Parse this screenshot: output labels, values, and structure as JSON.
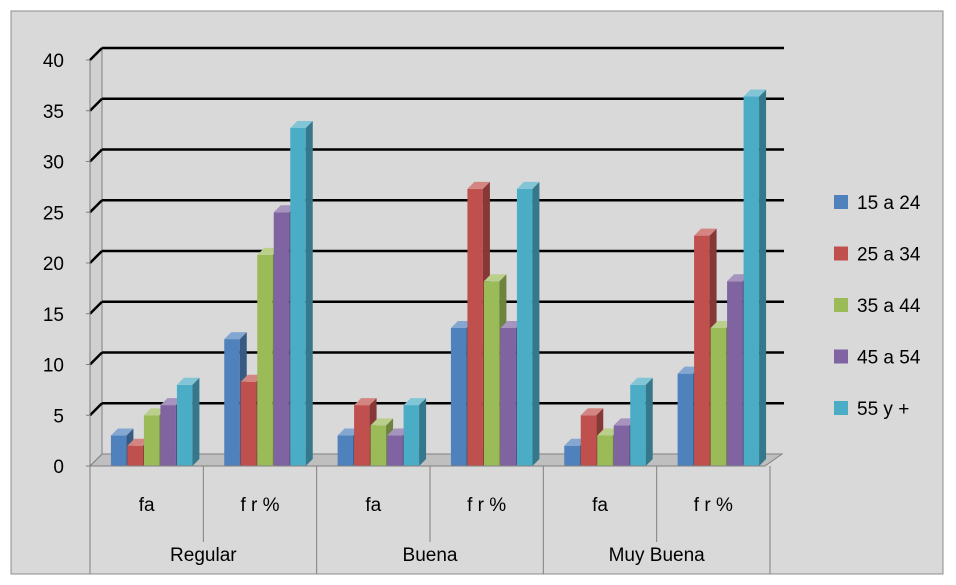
{
  "chart_data": {
    "type": "bar",
    "title": "",
    "xlabel": "",
    "ylabel": "",
    "ylim": [
      0,
      40
    ],
    "yticks": [
      "0",
      "5",
      "10",
      "15",
      "20",
      "25",
      "30",
      "35",
      "40"
    ],
    "grid": true,
    "legend_position": "right",
    "groups": [
      {
        "label": "Regular",
        "subcategories": [
          "fa",
          "f r %"
        ]
      },
      {
        "label": "Buena",
        "subcategories": [
          "fa",
          "f r %"
        ]
      },
      {
        "label": "Muy Buena",
        "subcategories": [
          "fa",
          "f r %"
        ]
      }
    ],
    "categories": [
      "fa",
      "f r %",
      "fa",
      "f r %",
      "fa",
      "f r %"
    ],
    "series": [
      {
        "name": "15 a 24",
        "color": "#4F81BD",
        "values": [
          3,
          12.5,
          3,
          13.6,
          2,
          9.1
        ]
      },
      {
        "name": "25 a 34",
        "color": "#C0504D",
        "values": [
          2,
          8.3,
          6,
          27.3,
          5,
          22.7
        ]
      },
      {
        "name": "35 a 44",
        "color": "#9BBB59",
        "values": [
          5,
          20.8,
          4,
          18.2,
          3,
          13.6
        ]
      },
      {
        "name": "45 a 54",
        "color": "#8064A2",
        "values": [
          6,
          25,
          3,
          13.6,
          4,
          18.2
        ]
      },
      {
        "name": "55 y +",
        "color": "#4BACC6",
        "values": [
          8,
          33.3,
          6,
          27.3,
          8,
          36.4
        ]
      }
    ]
  }
}
